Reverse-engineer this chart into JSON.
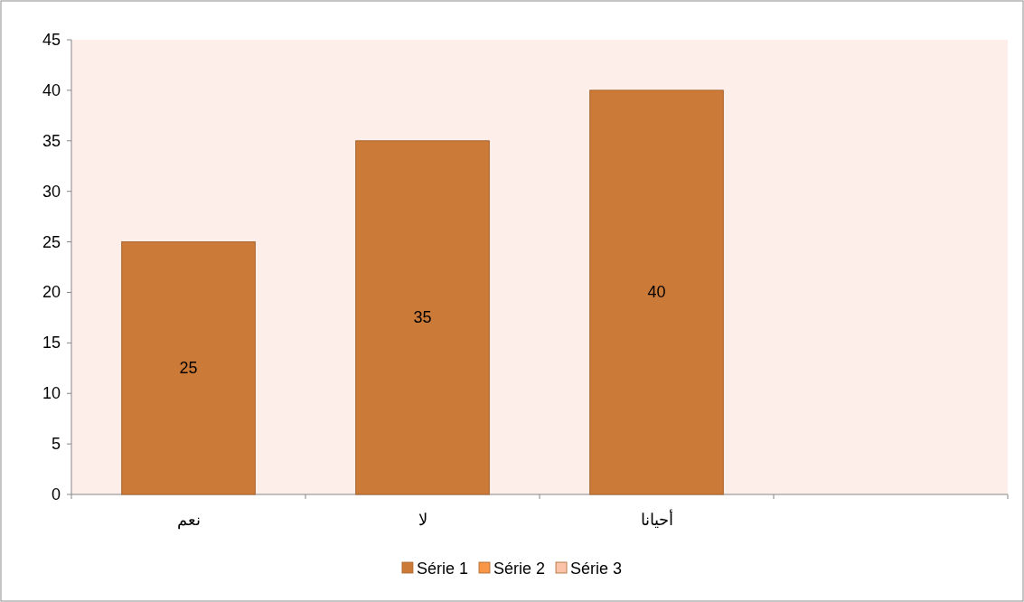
{
  "chart_data": {
    "type": "bar",
    "categories": [
      "نعم",
      "لا",
      "أحيانا",
      null
    ],
    "series": [
      {
        "name": "Série 1",
        "color": "#cc7a38",
        "values": [
          25,
          35,
          40,
          null
        ]
      },
      {
        "name": "Série 2",
        "color": "#f79646",
        "values": [
          null,
          null,
          null,
          null
        ]
      },
      {
        "name": "Série 3",
        "color": "#fbc4a8",
        "values": [
          null,
          null,
          null,
          null
        ]
      }
    ],
    "ylim": [
      0,
      45
    ],
    "yticks": [
      0,
      5,
      10,
      15,
      20,
      25,
      30,
      35,
      40,
      45
    ],
    "data_labels": true,
    "grid": false,
    "legend": "bottom"
  }
}
